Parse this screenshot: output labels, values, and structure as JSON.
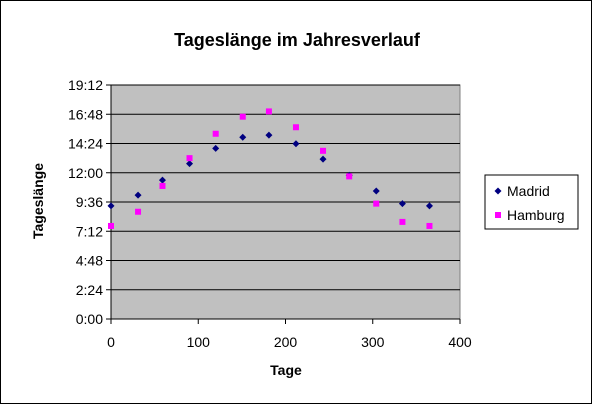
{
  "chart_data": {
    "type": "scatter",
    "title": "Tageslänge im Jahresverlauf",
    "xlabel": "Tage",
    "ylabel": "Tageslänge",
    "xlim": [
      0,
      400
    ],
    "ylim": [
      0,
      1152
    ],
    "x_ticks": [
      "0",
      "100",
      "200",
      "300",
      "400"
    ],
    "y_ticks": [
      "0:00",
      "2:24",
      "4:48",
      "7:12",
      "9:36",
      "12:00",
      "14:24",
      "16:48",
      "19:12"
    ],
    "grid": true,
    "legend_position": "right",
    "plot_background": "#c0c0c0",
    "series": [
      {
        "name": "Madrid",
        "marker": "diamond",
        "color": "#000080",
        "points": [
          {
            "x": 0,
            "y": "9:17"
          },
          {
            "x": 31,
            "y": "10:10"
          },
          {
            "x": 59,
            "y": "11:24"
          },
          {
            "x": 90,
            "y": "12:45"
          },
          {
            "x": 120,
            "y": "14:00"
          },
          {
            "x": 151,
            "y": "14:55"
          },
          {
            "x": 181,
            "y": "15:05"
          },
          {
            "x": 212,
            "y": "14:23"
          },
          {
            "x": 243,
            "y": "13:07"
          },
          {
            "x": 273,
            "y": "11:48"
          },
          {
            "x": 304,
            "y": "10:30"
          },
          {
            "x": 334,
            "y": "9:28"
          },
          {
            "x": 365,
            "y": "9:17"
          }
        ]
      },
      {
        "name": "Hamburg",
        "marker": "square",
        "color": "#ff00ff",
        "points": [
          {
            "x": 0,
            "y": "7:38"
          },
          {
            "x": 31,
            "y": "8:48"
          },
          {
            "x": 59,
            "y": "10:55"
          },
          {
            "x": 90,
            "y": "13:12"
          },
          {
            "x": 120,
            "y": "15:12"
          },
          {
            "x": 151,
            "y": "16:36"
          },
          {
            "x": 181,
            "y": "17:02"
          },
          {
            "x": 212,
            "y": "15:44"
          },
          {
            "x": 243,
            "y": "13:48"
          },
          {
            "x": 273,
            "y": "11:42"
          },
          {
            "x": 304,
            "y": "9:28"
          },
          {
            "x": 334,
            "y": "7:58"
          },
          {
            "x": 365,
            "y": "7:38"
          }
        ]
      }
    ]
  }
}
